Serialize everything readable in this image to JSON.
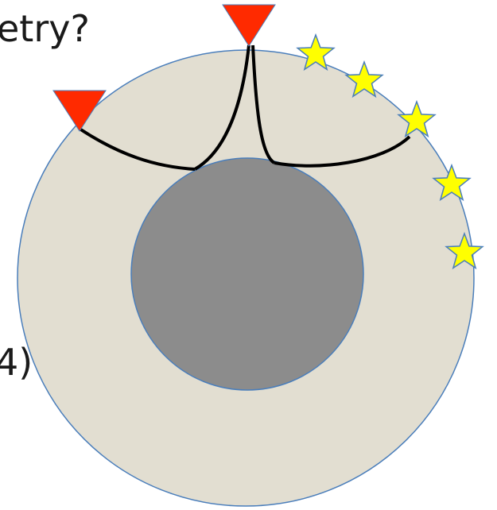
{
  "texts": {
    "title_fragment": "etry?",
    "body_fragment": "4)"
  }
}
